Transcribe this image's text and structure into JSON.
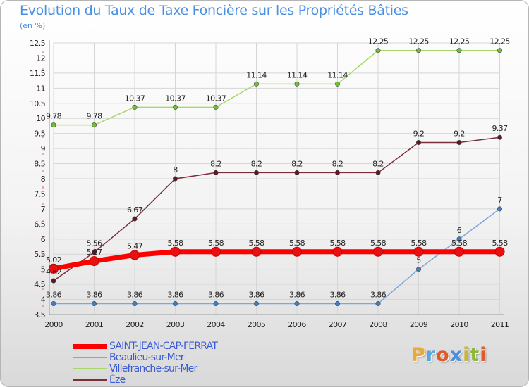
{
  "title": "Evolution du Taux de Taxe Foncière sur les Propriétés Bâties",
  "unit": "(en %)",
  "logo": {
    "letters": [
      "P",
      "r",
      "o",
      "x",
      "i",
      "t",
      "i"
    ],
    "colors": [
      "#e8a93a",
      "#5aa6e0",
      "#e15a2a",
      "#4a8fe0",
      "#c8b73a",
      "#8ab93a",
      "#e15a2a"
    ]
  },
  "chart_data": {
    "type": "line",
    "title": "Evolution du Taux de Taxe Foncière sur les Propriétés Bâties",
    "ylabel": "(en %)",
    "xlabel": "",
    "x": [
      "2000",
      "2001",
      "2002",
      "2003",
      "2004",
      "2005",
      "2006",
      "2007",
      "2008",
      "2009",
      "2010",
      "2011"
    ],
    "ylim": [
      3.5,
      12.5
    ],
    "yticks": [
      "3.5",
      "4",
      "4.5",
      "5",
      "5.5",
      "6",
      "6.5",
      "7",
      "7.5",
      "8",
      "8.5",
      "9",
      "9.5",
      "10",
      "10.5",
      "11",
      "11.5",
      "12",
      "12.5"
    ],
    "series": [
      {
        "name": "SAINT-JEAN-CAP-FERRAT",
        "color": "#ff0000",
        "marker": "#e81010",
        "values": [
          5.02,
          5.27,
          5.47,
          5.58,
          5.58,
          5.58,
          5.58,
          5.58,
          5.58,
          5.58,
          5.58,
          5.58
        ],
        "labels": [
          "5.02",
          "5.27",
          "5.47",
          "5.58",
          "5.58",
          "5.58",
          "5.58",
          "5.58",
          "5.58",
          "5.58",
          "5.58",
          "5.58"
        ]
      },
      {
        "name": "Beaulieu-sur-Mer",
        "color": "#7da7d9",
        "marker": "#3f7fc4",
        "values": [
          3.86,
          3.86,
          3.86,
          3.86,
          3.86,
          3.86,
          3.86,
          3.86,
          3.86,
          5,
          6,
          7
        ],
        "labels": [
          "3.86",
          "3.86",
          "3.86",
          "3.86",
          "3.86",
          "3.86",
          "3.86",
          "3.86",
          "3.86",
          "5",
          "6",
          "7"
        ]
      },
      {
        "name": "Villefranche-sur-Mer",
        "color": "#a6d96a",
        "marker": "#6fbf3a",
        "values": [
          9.78,
          9.78,
          10.37,
          10.37,
          10.37,
          11.14,
          11.14,
          11.14,
          12.25,
          12.25,
          12.25,
          12.25
        ],
        "labels": [
          "9.78",
          "9.78",
          "10.37",
          "10.37",
          "10.37",
          "11.14",
          "11.14",
          "11.14",
          "12.25",
          "12.25",
          "12.25",
          "12.25"
        ]
      },
      {
        "name": "Èze",
        "color": "#7a2e3a",
        "marker": "#5a1a24",
        "values": [
          4.62,
          5.56,
          6.67,
          8,
          8.2,
          8.2,
          8.2,
          8.2,
          8.2,
          9.2,
          9.2,
          9.37
        ],
        "labels": [
          "4.62",
          "5.56",
          "6.67",
          "8",
          "8.2",
          "8.2",
          "8.2",
          "8.2",
          "8.2",
          "9.2",
          "9.2",
          "9.37"
        ]
      }
    ]
  }
}
